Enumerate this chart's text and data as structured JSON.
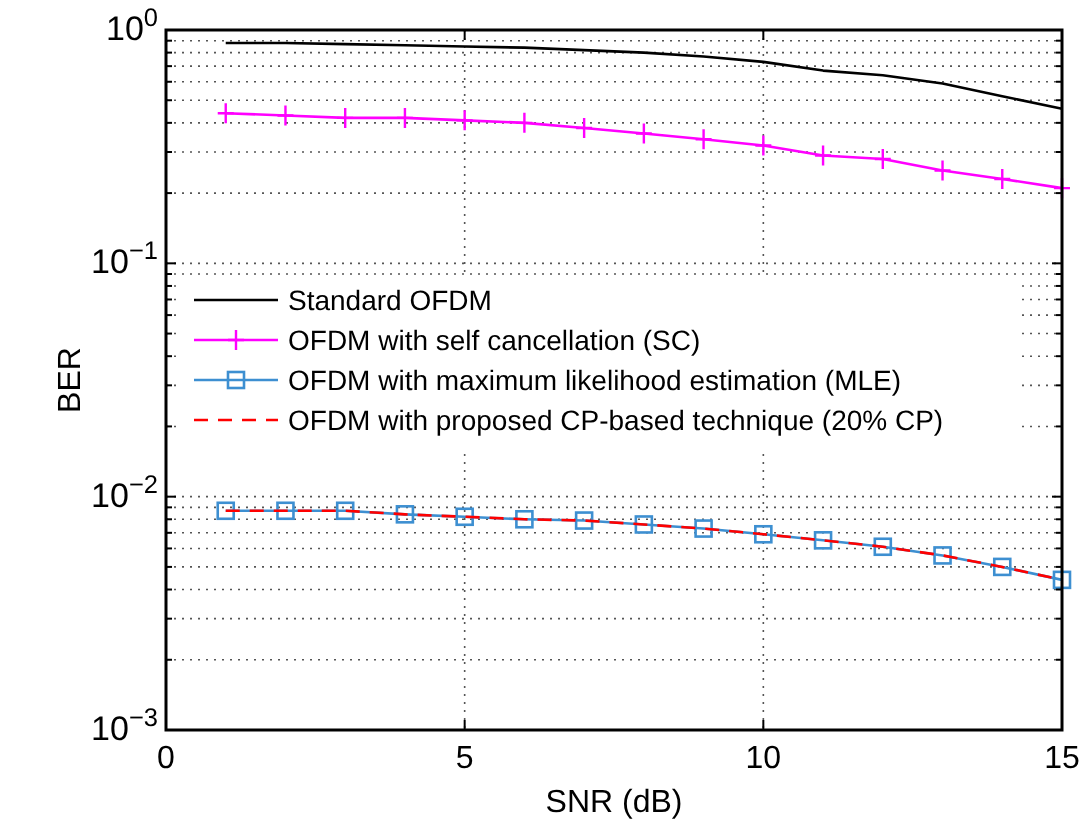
{
  "chart_data": {
    "type": "line",
    "xlabel": "SNR (dB)",
    "ylabel": "BER",
    "log": "y",
    "grid": true,
    "legend": "left",
    "x": [
      1,
      2,
      3,
      4,
      5,
      6,
      7,
      8,
      9,
      10,
      11,
      12,
      13,
      14,
      15
    ],
    "xlim": [
      0,
      15
    ],
    "xticks": [
      0,
      5,
      10,
      15
    ],
    "ylim": [
      0.001,
      1
    ],
    "yticks": [
      {
        "value": 0.001,
        "label": "10$^{−3}$"
      },
      {
        "value": 0.002,
        "label": null
      },
      {
        "value": 0.003,
        "label": null
      },
      {
        "value": 0.004,
        "label": null
      },
      {
        "value": 0.005,
        "label": null
      },
      {
        "value": 0.006,
        "label": null
      },
      {
        "value": 0.007,
        "label": null
      },
      {
        "value": 0.008,
        "label": null
      },
      {
        "value": 0.009,
        "label": null
      },
      {
        "value": 0.01,
        "label": "10$^{−2}$"
      },
      {
        "value": 0.02,
        "label": null
      },
      {
        "value": 0.03,
        "label": null
      },
      {
        "value": 0.04,
        "label": null
      },
      {
        "value": 0.05,
        "label": null
      },
      {
        "value": 0.06,
        "label": null
      },
      {
        "value": 0.07,
        "label": null
      },
      {
        "value": 0.08,
        "label": null
      },
      {
        "value": 0.09,
        "label": null
      },
      {
        "value": 0.1,
        "label": "10$^{−1}$"
      },
      {
        "value": 0.2,
        "label": null
      },
      {
        "value": 0.3,
        "label": null
      },
      {
        "value": 0.4,
        "label": null
      },
      {
        "value": 0.5,
        "label": null
      },
      {
        "value": 0.6,
        "label": null
      },
      {
        "value": 0.7,
        "label": null
      },
      {
        "value": 0.8,
        "label": null
      },
      {
        "value": 0.9,
        "label": null
      },
      {
        "value": 1,
        "label": "10$^{0}$"
      }
    ],
    "series": [
      {
        "name": "Standard OFDM",
        "color": "#000000",
        "marker": "none",
        "line_style": "solid",
        "values": [
          0.88,
          0.88,
          0.87,
          0.86,
          0.85,
          0.84,
          0.82,
          0.8,
          0.77,
          0.73,
          0.67,
          0.64,
          0.59,
          0.52,
          0.46
        ]
      },
      {
        "name": "OFDM with self cancellation (SC)",
        "color": "#ff00ff",
        "marker": "cross",
        "line_style": "solid",
        "values": [
          0.44,
          0.43,
          0.42,
          0.42,
          0.41,
          0.4,
          0.38,
          0.36,
          0.34,
          0.32,
          0.29,
          0.28,
          0.25,
          0.23,
          0.21
        ]
      },
      {
        "name": "OFDM with maximum likelihood estimation (MLE)",
        "color": "#3d8fd1",
        "marker": "square",
        "line_style": "solid",
        "values": [
          0.0087,
          0.0087,
          0.0087,
          0.0084,
          0.0082,
          0.008,
          0.0079,
          0.0076,
          0.0073,
          0.0069,
          0.0065,
          0.0061,
          0.0056,
          0.005,
          0.0044
        ]
      },
      {
        "name": "OFDM with proposed CP-based technique (20% CP)",
        "color": "#ff0000",
        "marker": "none",
        "line_style": "dashed",
        "values": [
          0.0087,
          0.0087,
          0.0087,
          0.0084,
          0.0082,
          0.008,
          0.0079,
          0.0076,
          0.0073,
          0.0069,
          0.0065,
          0.0061,
          0.0056,
          0.005,
          0.0044
        ]
      }
    ]
  }
}
